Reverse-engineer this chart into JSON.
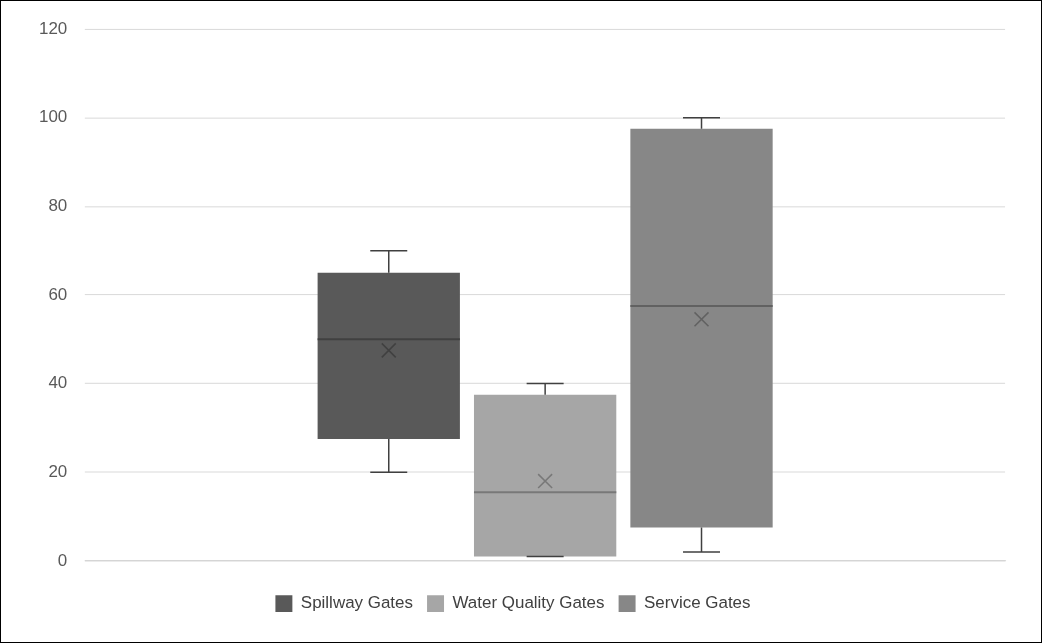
{
  "chart_data": {
    "type": "box",
    "categories": [
      null
    ],
    "series": [
      {
        "name": "Spillway Gates",
        "color": "#595959",
        "boxes": [
          {
            "low": 20,
            "q1": 27.5,
            "median": 50,
            "q3": 65,
            "high": 70,
            "mean": 47.5
          }
        ]
      },
      {
        "name": "Water Quality Gates",
        "color": "#a6a6a6",
        "boxes": [
          {
            "low": 1,
            "q1": 1,
            "median": 15.5,
            "q3": 37.5,
            "high": 40,
            "mean": 18
          }
        ]
      },
      {
        "name": "Service Gates",
        "color": "#878787",
        "boxes": [
          {
            "low": 2,
            "q1": 7.5,
            "median": 57.5,
            "q3": 97.5,
            "high": 100,
            "mean": 54.5
          }
        ]
      }
    ],
    "ylim": [
      0,
      120
    ],
    "yticks": [
      0,
      20,
      40,
      60,
      80,
      100,
      120
    ],
    "grid": "y",
    "legend": "bottom",
    "marker": "cross"
  }
}
